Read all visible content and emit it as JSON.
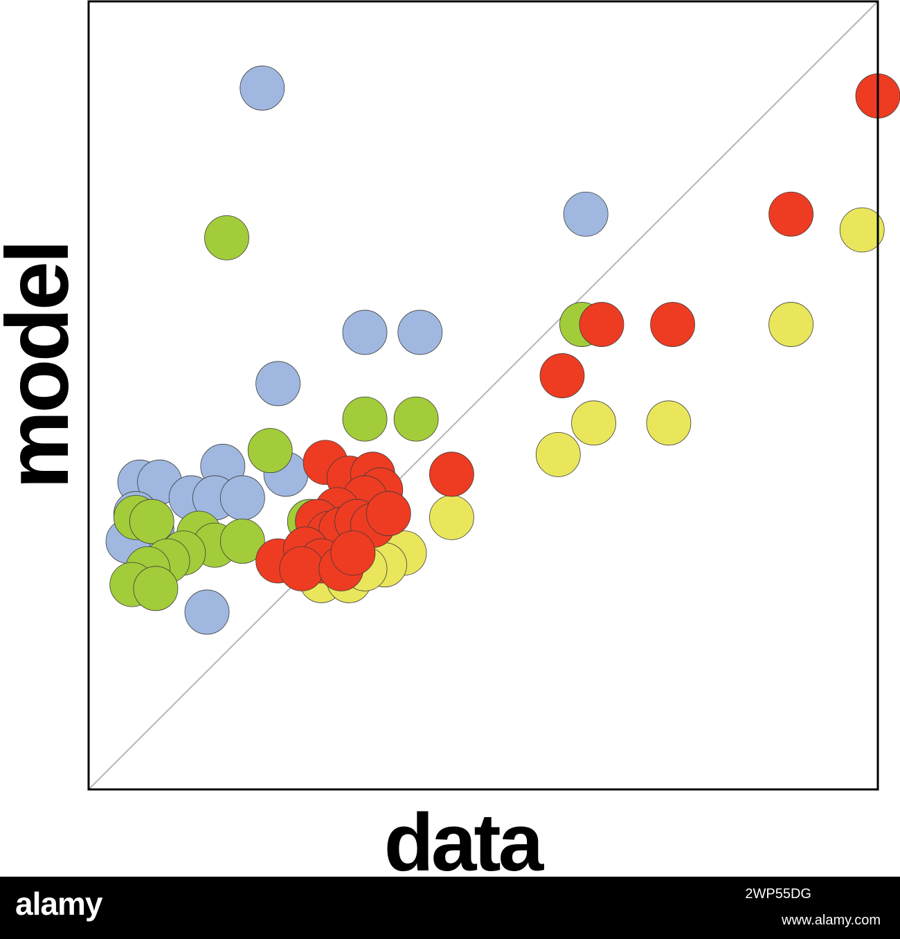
{
  "chart_data": {
    "type": "scatter",
    "title": "",
    "xlabel": "data",
    "ylabel": "model",
    "xlim": [
      0,
      100
    ],
    "ylim": [
      0,
      100
    ],
    "grid": false,
    "reference_line": "y = x",
    "series": [
      {
        "color": "#a0b8e0",
        "points": [
          [
            22,
            89
          ],
          [
            63,
            73
          ],
          [
            35,
            58
          ],
          [
            42,
            58
          ],
          [
            24,
            51.5
          ],
          [
            17,
            41
          ],
          [
            6.5,
            39
          ],
          [
            9,
            39
          ],
          [
            13,
            37
          ],
          [
            16,
            37
          ],
          [
            19.5,
            37
          ],
          [
            25,
            40
          ],
          [
            6,
            35
          ],
          [
            8,
            33
          ],
          [
            5,
            31.5
          ],
          [
            15,
            22.5
          ]
        ]
      },
      {
        "color": "#a2cc3a",
        "points": [
          [
            17.5,
            70
          ],
          [
            62.5,
            59
          ],
          [
            35,
            47
          ],
          [
            41.5,
            47
          ],
          [
            23,
            43
          ],
          [
            6,
            34.5
          ],
          [
            8,
            34
          ],
          [
            14,
            32.5
          ],
          [
            16,
            31
          ],
          [
            19.5,
            31.5
          ],
          [
            12,
            30
          ],
          [
            10,
            29
          ],
          [
            7.5,
            28
          ],
          [
            5.5,
            26
          ],
          [
            8.5,
            25.5
          ],
          [
            28,
            34
          ]
        ]
      },
      {
        "color": "#e9e65c",
        "points": [
          [
            98,
            71
          ],
          [
            89,
            59
          ],
          [
            73.5,
            46.5
          ],
          [
            64,
            46.5
          ],
          [
            59.5,
            42.5
          ],
          [
            46,
            34.5
          ],
          [
            36,
            32
          ],
          [
            40,
            30
          ],
          [
            37.5,
            28.5
          ],
          [
            29.5,
            26.5
          ],
          [
            33,
            26.5
          ],
          [
            35,
            28
          ]
        ]
      },
      {
        "color": "#ee3c22",
        "points": [
          [
            100,
            88
          ],
          [
            89,
            73
          ],
          [
            65,
            59
          ],
          [
            74,
            59
          ],
          [
            60,
            52.5
          ],
          [
            46,
            40
          ],
          [
            30,
            41.5
          ],
          [
            33,
            39.5
          ],
          [
            36,
            40
          ],
          [
            37,
            38
          ],
          [
            35,
            37
          ],
          [
            31.5,
            35.5
          ],
          [
            29,
            34
          ],
          [
            30.5,
            32.5
          ],
          [
            32,
            33
          ],
          [
            34,
            34
          ],
          [
            36,
            33.5
          ],
          [
            24,
            29
          ],
          [
            27.5,
            30.5
          ],
          [
            29.5,
            29
          ],
          [
            27,
            28
          ],
          [
            32,
            28
          ],
          [
            33.5,
            30
          ],
          [
            38,
            35
          ]
        ]
      }
    ]
  },
  "watermark": {
    "logo": "alamy",
    "image_id": "2WP55DG",
    "url": "www.alamy.com"
  }
}
